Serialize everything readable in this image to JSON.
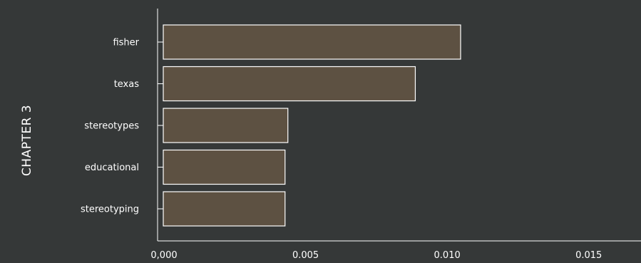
{
  "chart_data": {
    "type": "bar",
    "orientation": "horizontal",
    "ylabel": "CHAPTER 3",
    "categories": [
      "fisher",
      "texas",
      "stereotypes",
      "educational",
      "stereotyping"
    ],
    "values": [
      0.0105,
      0.0089,
      0.0044,
      0.0043,
      0.0043
    ],
    "xlim": [
      0,
      0.017
    ],
    "xticks": [
      0,
      0.005,
      0.01,
      0.015
    ],
    "xtick_labels": [
      "0,000",
      "0.005",
      "0.010",
      "0.015"
    ],
    "grid": false,
    "legend": "none"
  },
  "colors": {
    "background": "#353838",
    "bar_fill": "#5d5142",
    "bar_stroke": "#ffffff",
    "axis": "#ffffff",
    "text": "#ffffff"
  }
}
